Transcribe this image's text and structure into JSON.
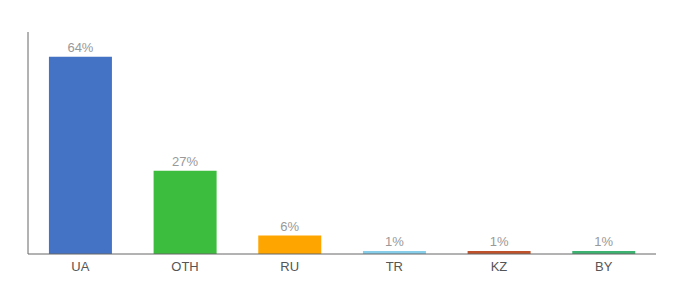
{
  "chart_data": {
    "type": "bar",
    "categories": [
      "UA",
      "OTH",
      "RU",
      "TR",
      "KZ",
      "BY"
    ],
    "values": [
      64,
      27,
      6,
      1,
      1,
      1
    ],
    "value_labels": [
      "64%",
      "27%",
      "6%",
      "1%",
      "1%",
      "1%"
    ],
    "colors": [
      "#4472C4",
      "#3DBD3D",
      "#FFA500",
      "#87CEEB",
      "#C0522B",
      "#3CB371"
    ],
    "ylim": [
      0,
      72
    ],
    "data_labels": true,
    "tick_labels": "x",
    "grid": false
  }
}
